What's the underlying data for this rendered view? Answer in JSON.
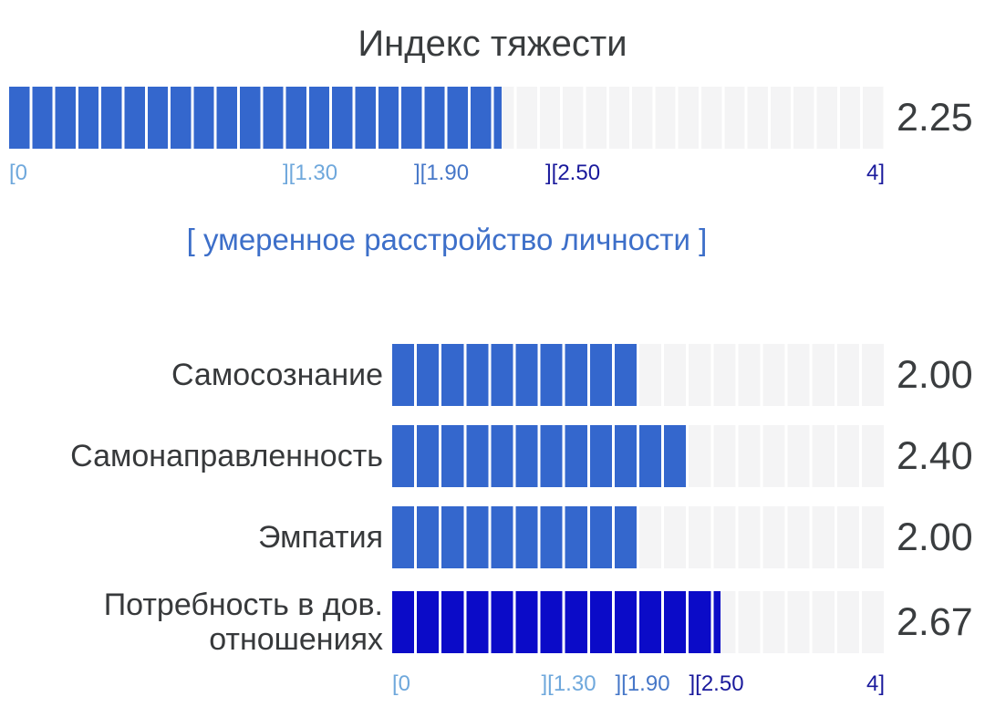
{
  "title": "Индекс тяжести",
  "severity": {
    "value": "2.25",
    "value_num": 2.25,
    "max": 4,
    "band_label": "[ умеренное расстройство личности ]",
    "band_label_color": "#3d6fc9",
    "color": "#3467cd"
  },
  "scale": {
    "ticks": [
      {
        "label": "[0",
        "pos": 0,
        "color": "#6fa8dc"
      },
      {
        "label": "][1.30",
        "pos": 32.5,
        "color": "#6fa8dc"
      },
      {
        "label": "][1.90",
        "pos": 47.5,
        "color": "#4677c8"
      },
      {
        "label": "][2.50",
        "pos": 62.5,
        "color": "#1a1a9c"
      },
      {
        "label": "4]",
        "pos": 100,
        "color": "#1a1a9c"
      }
    ]
  },
  "rows": [
    {
      "label": "Самосознание",
      "value": "2.00",
      "value_num": 2.0,
      "color": "#3467cd"
    },
    {
      "label": "Самонаправленность",
      "value": "2.40",
      "value_num": 2.4,
      "color": "#3467cd"
    },
    {
      "label": "Эмпатия",
      "value": "2.00",
      "value_num": 2.0,
      "color": "#3467cd"
    },
    {
      "label": "Потребность в дов. отношениях",
      "value": "2.67",
      "value_num": 2.67,
      "color": "#0b0bc8"
    }
  ],
  "chart_data": {
    "type": "bar",
    "orientation": "horizontal",
    "title": "Индекс тяжести",
    "xlim": [
      0,
      4
    ],
    "thresholds": [
      0,
      1.3,
      1.9,
      2.5,
      4
    ],
    "threshold_labels": [
      "[0",
      "][1.30",
      "][1.90",
      "][2.50",
      "4]"
    ],
    "severity_index": {
      "value": 2.25,
      "interpretation": "[ умеренное расстройство личности ]"
    },
    "categories": [
      "Самосознание",
      "Самонаправленность",
      "Эмпатия",
      "Потребность в дов. отношениях"
    ],
    "values": [
      2.0,
      2.4,
      2.0,
      2.67
    ],
    "grid": false,
    "legend": false
  }
}
